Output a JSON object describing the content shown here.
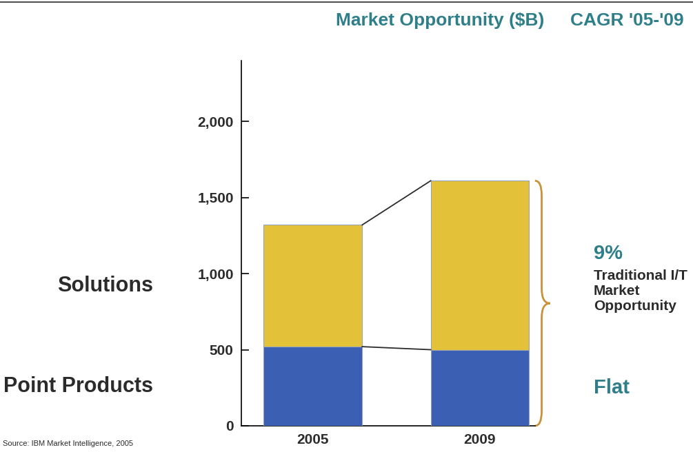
{
  "chart_data": {
    "type": "bar",
    "stacked": true,
    "title": "Market Opportunity ($B)",
    "cagr_header": "CAGR '05-'09",
    "categories": [
      "2005",
      "2009"
    ],
    "series": [
      {
        "name": "Point Products",
        "color": "#3b5fb3",
        "values": [
          520,
          500
        ],
        "cagr": "Flat"
      },
      {
        "name": "Solutions",
        "color": "#e3c23a",
        "values": [
          800,
          1110
        ],
        "cagr": "9%"
      }
    ],
    "bracket_label": "Traditional I/T Market Opportunity",
    "ylim": [
      0,
      2400
    ],
    "yticks": [
      0,
      500,
      {
        "value": 1000,
        "label": "1,000"
      },
      {
        "value": 1500,
        "label": "1,500"
      },
      {
        "value": 2000,
        "label": "2,000"
      }
    ],
    "source": "Source: IBM Market Intelligence, 2005"
  }
}
